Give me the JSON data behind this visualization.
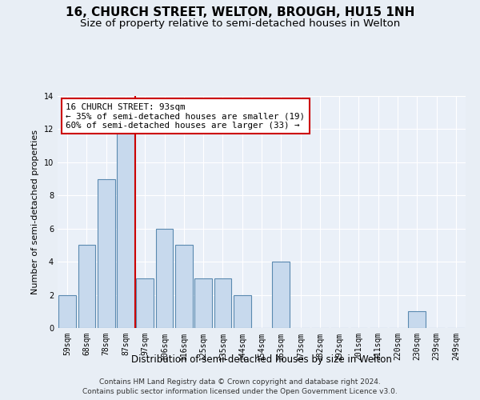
{
  "title": "16, CHURCH STREET, WELTON, BROUGH, HU15 1NH",
  "subtitle": "Size of property relative to semi-detached houses in Welton",
  "xlabel": "Distribution of semi-detached houses by size in Welton",
  "ylabel": "Number of semi-detached properties",
  "categories": [
    "59sqm",
    "68sqm",
    "78sqm",
    "87sqm",
    "97sqm",
    "106sqm",
    "116sqm",
    "125sqm",
    "135sqm",
    "144sqm",
    "154sqm",
    "163sqm",
    "173sqm",
    "182sqm",
    "192sqm",
    "201sqm",
    "211sqm",
    "220sqm",
    "230sqm",
    "239sqm",
    "249sqm"
  ],
  "values": [
    2,
    5,
    9,
    12,
    3,
    6,
    5,
    3,
    3,
    2,
    0,
    4,
    0,
    0,
    0,
    0,
    0,
    0,
    1,
    0,
    0
  ],
  "bar_color": "#c7d9ed",
  "bar_edge_color": "#5a8ab0",
  "red_line_index": 3.5,
  "highlight_line_color": "#cc0000",
  "annotation_text": "16 CHURCH STREET: 93sqm\n← 35% of semi-detached houses are smaller (19)\n60% of semi-detached houses are larger (33) →",
  "annotation_box_color": "#ffffff",
  "annotation_box_edge": "#cc0000",
  "ylim": [
    0,
    14
  ],
  "yticks": [
    0,
    2,
    4,
    6,
    8,
    10,
    12,
    14
  ],
  "footer_line1": "Contains HM Land Registry data © Crown copyright and database right 2024.",
  "footer_line2": "Contains public sector information licensed under the Open Government Licence v3.0.",
  "bg_color": "#e8eef5",
  "plot_bg_color": "#eaf0f8",
  "grid_color": "#ffffff",
  "title_fontsize": 11,
  "subtitle_fontsize": 9.5,
  "label_fontsize": 8,
  "tick_fontsize": 7,
  "footer_fontsize": 6.5
}
